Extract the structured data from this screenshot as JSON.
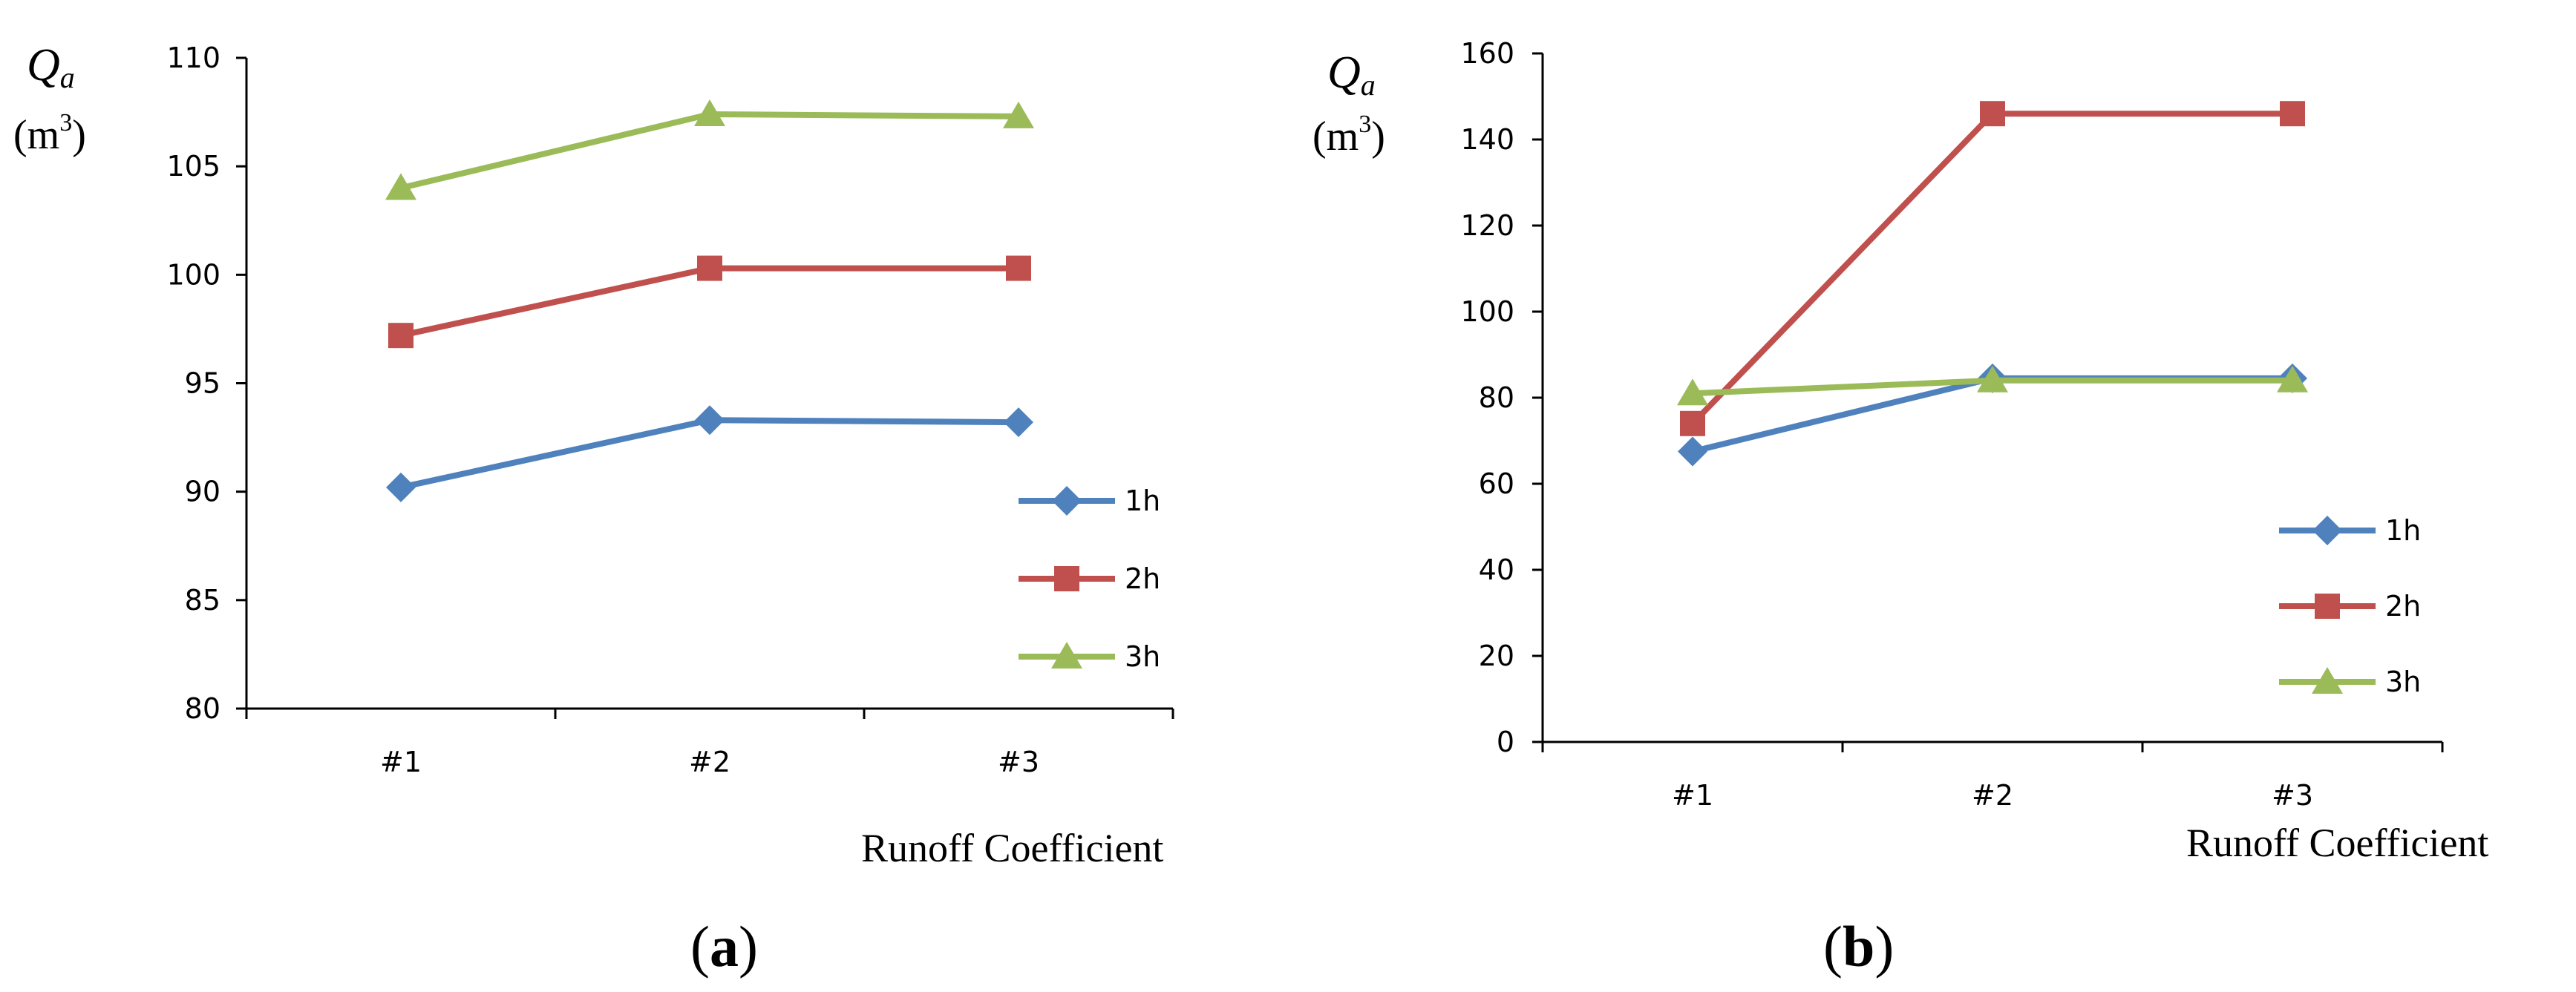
{
  "chart_data": [
    {
      "type": "line",
      "panel_label": {
        "open": "(",
        "letter": "a",
        "close": ")"
      },
      "ylabel": {
        "symbol": "Q",
        "subscript": "a",
        "unit_open": "(m",
        "unit_sup": "3",
        "unit_close": ")"
      },
      "xlabel": "Runoff Coefficient",
      "categories": [
        "#1",
        "#2",
        "#3"
      ],
      "ylim": [
        80,
        110
      ],
      "yticks": [
        "80",
        "85",
        "90",
        "95",
        "100",
        "105",
        "110"
      ],
      "legend_position": "right",
      "series": [
        {
          "name": "1h",
          "marker": "diamond",
          "color": "#4F81BD",
          "values": [
            90.2,
            93.3,
            93.2
          ]
        },
        {
          "name": "2h",
          "marker": "square",
          "color": "#C0504D",
          "values": [
            97.2,
            100.3,
            100.3
          ]
        },
        {
          "name": "3h",
          "marker": "triangle",
          "color": "#9BBB59",
          "values": [
            104.0,
            107.4,
            107.3
          ]
        }
      ]
    },
    {
      "type": "line",
      "panel_label": {
        "open": "(",
        "letter": "b",
        "close": ")"
      },
      "ylabel": {
        "symbol": "Q",
        "subscript": "a",
        "unit_open": "(m",
        "unit_sup": "3",
        "unit_close": ")"
      },
      "xlabel": "Runoff Coefficient",
      "categories": [
        "#1",
        "#2",
        "#3"
      ],
      "ylim": [
        0,
        160
      ],
      "yticks": [
        "0",
        "20",
        "40",
        "60",
        "80",
        "100",
        "120",
        "140",
        "160"
      ],
      "legend_position": "bottom-right",
      "series": [
        {
          "name": "1h",
          "marker": "diamond",
          "color": "#4F81BD",
          "values": [
            67.5,
            84.5,
            84.5
          ]
        },
        {
          "name": "2h",
          "marker": "square",
          "color": "#C0504D",
          "values": [
            74.0,
            146.0,
            146.0
          ]
        },
        {
          "name": "3h",
          "marker": "triangle",
          "color": "#9BBB59",
          "values": [
            81.0,
            84.0,
            84.0
          ]
        }
      ]
    }
  ]
}
